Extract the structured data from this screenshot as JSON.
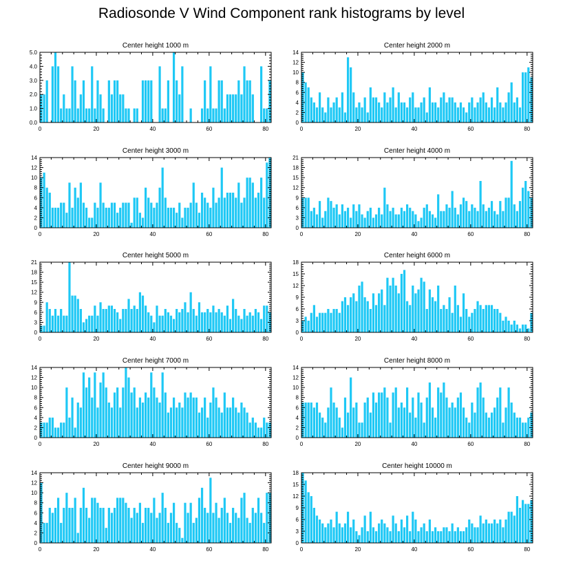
{
  "figure_title": "Radiosonde V Wind Component rank histograms by level",
  "colors": {
    "bar": "#1ec8f5",
    "axis": "#000000",
    "background": "#ffffff"
  },
  "chart_data": [
    {
      "type": "bar",
      "title": "Center height 1000 m",
      "xlim": [
        0,
        82
      ],
      "ylim": [
        0,
        5
      ],
      "xticks": [
        0,
        20,
        40,
        60,
        80
      ],
      "yticks": [
        0,
        1,
        2,
        3,
        4,
        5
      ],
      "ytick_labels": [
        "0.0",
        "1.0",
        "2.0",
        "3.0",
        "4.0",
        "5.0"
      ],
      "values": [
        2,
        2,
        3,
        0,
        4,
        5,
        4,
        1,
        2,
        1,
        1,
        4,
        3,
        1,
        2,
        3,
        1,
        1,
        4,
        1,
        3,
        2,
        1,
        0,
        3,
        2,
        3,
        3,
        2,
        2,
        1,
        1,
        0,
        1,
        1,
        0,
        3,
        3,
        3,
        3,
        0,
        0,
        4,
        1,
        1,
        3,
        0,
        5,
        3,
        2,
        4,
        0,
        0,
        1,
        0,
        0,
        0,
        1,
        3,
        1,
        4,
        1,
        1,
        3,
        3,
        1,
        2,
        2,
        2,
        2,
        3,
        2,
        4,
        3,
        3,
        2,
        0,
        0,
        4,
        1,
        1,
        3
      ]
    },
    {
      "type": "bar",
      "title": "Center height 2000 m",
      "xlim": [
        0,
        82
      ],
      "ylim": [
        0,
        14
      ],
      "xticks": [
        0,
        20,
        40,
        60,
        80
      ],
      "yticks": [
        0,
        2,
        4,
        6,
        8,
        10,
        12,
        14
      ],
      "ytick_labels": [
        "0",
        "2",
        "4",
        "6",
        "8",
        "10",
        "12",
        "14"
      ],
      "values": [
        10,
        8,
        7,
        5,
        4,
        3,
        6,
        3,
        2,
        5,
        3,
        4,
        5,
        3,
        6,
        2,
        13,
        11,
        6,
        3,
        4,
        3,
        5,
        2,
        7,
        5,
        5,
        4,
        3,
        6,
        4,
        5,
        7,
        3,
        6,
        4,
        4,
        3,
        5,
        6,
        3,
        3,
        4,
        5,
        2,
        7,
        4,
        4,
        3,
        5,
        6,
        4,
        5,
        5,
        4,
        3,
        4,
        3,
        2,
        4,
        5,
        3,
        4,
        5,
        6,
        4,
        3,
        5,
        3,
        7,
        4,
        3,
        4,
        6,
        8,
        4,
        5,
        3,
        10,
        10,
        11,
        9
      ]
    },
    {
      "type": "bar",
      "title": "Center height 3000 m",
      "xlim": [
        0,
        82
      ],
      "ylim": [
        0,
        14
      ],
      "xticks": [
        0,
        20,
        40,
        60,
        80
      ],
      "yticks": [
        0,
        2,
        4,
        6,
        8,
        10,
        12,
        14
      ],
      "ytick_labels": [
        "0",
        "2",
        "4",
        "6",
        "8",
        "10",
        "12",
        "14"
      ],
      "values": [
        10,
        11,
        8,
        7,
        4,
        4,
        4,
        5,
        5,
        3,
        9,
        4,
        8,
        6,
        9,
        5,
        4,
        2,
        2,
        5,
        4,
        9,
        5,
        4,
        4,
        5,
        5,
        3,
        4,
        5,
        5,
        5,
        1,
        6,
        6,
        3,
        2,
        8,
        6,
        5,
        4,
        5,
        8,
        12,
        6,
        4,
        4,
        4,
        3,
        5,
        2,
        4,
        4,
        5,
        9,
        5,
        3,
        7,
        6,
        5,
        4,
        8,
        5,
        6,
        12,
        6,
        7,
        7,
        7,
        6,
        9,
        5,
        6,
        10,
        10,
        9,
        6,
        7,
        10,
        6,
        13,
        14
      ]
    },
    {
      "type": "bar",
      "title": "Center height 4000 m",
      "xlim": [
        0,
        82
      ],
      "ylim": [
        0,
        21
      ],
      "xticks": [
        0,
        20,
        40,
        60,
        80
      ],
      "yticks": [
        0,
        3,
        6,
        9,
        12,
        15,
        18,
        21
      ],
      "ytick_labels": [
        "0",
        "3",
        "6",
        "9",
        "12",
        "15",
        "18",
        "21"
      ],
      "values": [
        9,
        9,
        9,
        5,
        6,
        4,
        8,
        3,
        5,
        9,
        8,
        6,
        7,
        4,
        7,
        5,
        6,
        3,
        7,
        5,
        7,
        4,
        3,
        5,
        6,
        3,
        4,
        6,
        4,
        12,
        7,
        5,
        6,
        4,
        4,
        6,
        5,
        7,
        6,
        5,
        4,
        2,
        3,
        6,
        7,
        5,
        4,
        3,
        10,
        5,
        5,
        7,
        6,
        11,
        6,
        4,
        7,
        9,
        8,
        5,
        7,
        6,
        5,
        14,
        7,
        5,
        6,
        8,
        5,
        4,
        8,
        5,
        9,
        9,
        20,
        7,
        5,
        8,
        12,
        14,
        11,
        9
      ]
    },
    {
      "type": "bar",
      "title": "Center height 5000 m",
      "xlim": [
        0,
        82
      ],
      "ylim": [
        0,
        21
      ],
      "xticks": [
        0,
        20,
        40,
        60,
        80
      ],
      "yticks": [
        0,
        3,
        6,
        9,
        12,
        15,
        18,
        21
      ],
      "ytick_labels": [
        "0",
        "3",
        "6",
        "9",
        "12",
        "15",
        "18",
        "21"
      ],
      "values": [
        2,
        2,
        9,
        7,
        5,
        7,
        5,
        7,
        5,
        5,
        21,
        11,
        11,
        10,
        7,
        3,
        4,
        5,
        5,
        8,
        5,
        9,
        7,
        7,
        8,
        8,
        7,
        6,
        4,
        7,
        7,
        10,
        7,
        8,
        7,
        12,
        11,
        8,
        6,
        5,
        3,
        8,
        5,
        5,
        7,
        6,
        5,
        4,
        7,
        6,
        7,
        9,
        6,
        12,
        7,
        5,
        9,
        6,
        6,
        7,
        6,
        8,
        6,
        7,
        6,
        5,
        8,
        4,
        10,
        7,
        5,
        4,
        7,
        5,
        6,
        5,
        7,
        6,
        4,
        8,
        8,
        6
      ]
    },
    {
      "type": "bar",
      "title": "Center height 6000 m",
      "xlim": [
        0,
        82
      ],
      "ylim": [
        0,
        18
      ],
      "xticks": [
        0,
        20,
        40,
        60,
        80
      ],
      "yticks": [
        0,
        3,
        6,
        9,
        12,
        15,
        18
      ],
      "ytick_labels": [
        "0",
        "3",
        "6",
        "9",
        "12",
        "15",
        "18"
      ],
      "values": [
        3,
        4,
        3,
        5,
        7,
        4,
        5,
        5,
        5,
        6,
        5,
        6,
        6,
        5,
        8,
        9,
        7,
        9,
        10,
        8,
        12,
        13,
        9,
        8,
        6,
        10,
        7,
        10,
        11,
        7,
        14,
        12,
        14,
        12,
        10,
        15,
        16,
        8,
        7,
        12,
        10,
        11,
        14,
        13,
        6,
        11,
        9,
        8,
        12,
        6,
        7,
        6,
        9,
        5,
        12,
        7,
        4,
        10,
        6,
        4,
        5,
        6,
        8,
        7,
        6,
        7,
        7,
        7,
        6,
        6,
        5,
        3,
        4,
        3,
        2,
        3,
        2,
        1,
        2,
        2,
        1,
        5
      ]
    },
    {
      "type": "bar",
      "title": "Center height 7000 m",
      "xlim": [
        0,
        82
      ],
      "ylim": [
        0,
        14
      ],
      "xticks": [
        0,
        20,
        40,
        60,
        80
      ],
      "yticks": [
        0,
        2,
        4,
        6,
        8,
        10,
        12,
        14
      ],
      "ytick_labels": [
        "0",
        "2",
        "4",
        "6",
        "8",
        "10",
        "12",
        "14"
      ],
      "values": [
        3,
        3,
        3,
        4,
        4,
        2,
        2,
        3,
        3,
        10,
        4,
        8,
        2,
        7,
        6,
        13,
        10,
        12,
        8,
        13,
        6,
        11,
        13,
        10,
        7,
        6,
        9,
        10,
        6,
        10,
        14,
        12,
        9,
        10,
        6,
        8,
        7,
        9,
        8,
        13,
        10,
        8,
        7,
        13,
        9,
        5,
        6,
        8,
        6,
        7,
        6,
        9,
        8,
        9,
        8,
        8,
        5,
        6,
        8,
        4,
        7,
        10,
        8,
        6,
        5,
        9,
        6,
        6,
        8,
        6,
        5,
        7,
        6,
        5,
        3,
        4,
        3,
        2,
        2,
        4,
        3,
        3
      ]
    },
    {
      "type": "bar",
      "title": "Center height 8000 m",
      "xlim": [
        0,
        82
      ],
      "ylim": [
        0,
        14
      ],
      "xticks": [
        0,
        20,
        40,
        60,
        80
      ],
      "yticks": [
        0,
        2,
        4,
        6,
        8,
        10,
        12,
        14
      ],
      "ytick_labels": [
        "0",
        "2",
        "4",
        "6",
        "8",
        "10",
        "12",
        "14"
      ],
      "values": [
        7,
        7,
        7,
        7,
        6,
        7,
        5,
        4,
        3,
        6,
        10,
        7,
        6,
        4,
        2,
        8,
        5,
        12,
        6,
        7,
        3,
        3,
        7,
        8,
        5,
        9,
        7,
        9,
        9,
        10,
        8,
        3,
        9,
        10,
        6,
        7,
        6,
        10,
        5,
        8,
        4,
        9,
        7,
        3,
        8,
        11,
        6,
        4,
        10,
        9,
        11,
        8,
        6,
        7,
        6,
        8,
        9,
        6,
        4,
        3,
        7,
        5,
        10,
        11,
        8,
        5,
        4,
        5,
        6,
        8,
        10,
        3,
        6,
        10,
        7,
        5,
        4,
        4,
        3,
        3,
        4,
        5
      ]
    },
    {
      "type": "bar",
      "title": "Center height 9000 m",
      "xlim": [
        0,
        82
      ],
      "ylim": [
        0,
        14
      ],
      "xticks": [
        0,
        20,
        40,
        60,
        80
      ],
      "yticks": [
        0,
        2,
        4,
        6,
        8,
        10,
        12,
        14
      ],
      "ytick_labels": [
        "0",
        "2",
        "4",
        "6",
        "8",
        "10",
        "12",
        "14"
      ],
      "values": [
        12,
        4,
        4,
        7,
        6,
        7,
        9,
        4,
        7,
        10,
        7,
        7,
        9,
        2,
        7,
        11,
        7,
        5,
        9,
        9,
        8,
        7,
        7,
        3,
        7,
        6,
        7,
        9,
        9,
        9,
        8,
        7,
        5,
        7,
        6,
        8,
        4,
        7,
        7,
        6,
        9,
        5,
        6,
        10,
        7,
        4,
        6,
        8,
        4,
        3,
        1,
        8,
        6,
        8,
        4,
        5,
        9,
        11,
        7,
        6,
        13,
        6,
        8,
        5,
        7,
        9,
        6,
        4,
        7,
        6,
        5,
        9,
        10,
        5,
        4,
        7,
        6,
        9,
        6,
        4,
        10,
        10
      ]
    },
    {
      "type": "bar",
      "title": "Center height 10000 m",
      "xlim": [
        0,
        82
      ],
      "ylim": [
        0,
        18
      ],
      "xticks": [
        0,
        20,
        40,
        60,
        80
      ],
      "yticks": [
        0,
        3,
        6,
        9,
        12,
        15,
        18
      ],
      "ytick_labels": [
        "0",
        "3",
        "6",
        "9",
        "12",
        "15",
        "18"
      ],
      "values": [
        18,
        16,
        13,
        12,
        9,
        7,
        6,
        5,
        4,
        5,
        6,
        4,
        8,
        5,
        4,
        5,
        8,
        4,
        6,
        3,
        2,
        4,
        7,
        3,
        8,
        4,
        3,
        5,
        6,
        5,
        4,
        3,
        7,
        5,
        3,
        6,
        4,
        7,
        3,
        8,
        6,
        3,
        4,
        5,
        3,
        6,
        3,
        4,
        3,
        3,
        4,
        4,
        3,
        5,
        3,
        4,
        3,
        3,
        4,
        6,
        5,
        4,
        4,
        7,
        5,
        6,
        5,
        5,
        6,
        5,
        6,
        4,
        6,
        8,
        8,
        7,
        12,
        9,
        11,
        10,
        10,
        11
      ]
    }
  ]
}
